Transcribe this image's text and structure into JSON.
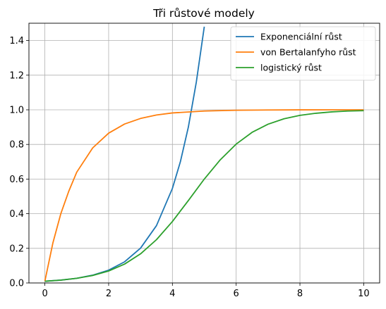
{
  "chart_data": {
    "type": "line",
    "title": "Tři růstové modely",
    "xlabel": "",
    "ylabel": "",
    "xlim": [
      -0.5,
      10.5
    ],
    "ylim": [
      0.0,
      1.5
    ],
    "grid": true,
    "legend_position": "top-right",
    "x_ticks": [
      {
        "value": 0,
        "label": "0"
      },
      {
        "value": 2,
        "label": "2"
      },
      {
        "value": 4,
        "label": "4"
      },
      {
        "value": 6,
        "label": "6"
      },
      {
        "value": 8,
        "label": "8"
      },
      {
        "value": 10,
        "label": "10"
      }
    ],
    "y_ticks": [
      {
        "value": 0.0,
        "label": "0.0"
      },
      {
        "value": 0.2,
        "label": "0.2"
      },
      {
        "value": 0.4,
        "label": "0.4"
      },
      {
        "value": 0.6,
        "label": "0.6"
      },
      {
        "value": 0.8,
        "label": "0.8"
      },
      {
        "value": 1.0,
        "label": "1.0"
      },
      {
        "value": 1.2,
        "label": "1.2"
      },
      {
        "value": 1.4,
        "label": "1.4"
      }
    ],
    "series": [
      {
        "name": "Exponenciální růst",
        "color": "#1f77b4",
        "x": [
          0,
          0.5,
          1,
          1.5,
          2,
          2.5,
          3,
          3.5,
          4,
          4.25,
          4.5,
          4.75,
          5.0
        ],
        "y": [
          0.01,
          0.0165,
          0.027,
          0.045,
          0.074,
          0.122,
          0.201,
          0.331,
          0.546,
          0.7,
          0.9,
          1.16,
          1.48
        ]
      },
      {
        "name": "von Bertalanfyho růst",
        "color": "#ff7f0e",
        "x": [
          0,
          0.25,
          0.5,
          0.75,
          1,
          1.5,
          2,
          2.5,
          3,
          3.5,
          4,
          5,
          6,
          7,
          8,
          9,
          10
        ],
        "y": [
          0.01,
          0.23,
          0.4,
          0.53,
          0.64,
          0.78,
          0.865,
          0.918,
          0.95,
          0.97,
          0.982,
          0.993,
          0.9975,
          0.999,
          0.9997,
          0.9999,
          1.0
        ]
      },
      {
        "name": "logistický růst",
        "color": "#2ca02c",
        "x": [
          0,
          0.5,
          1,
          1.5,
          2,
          2.5,
          3,
          3.5,
          4,
          4.5,
          5,
          5.5,
          6,
          6.5,
          7,
          7.5,
          8,
          8.5,
          9,
          9.5,
          10
        ],
        "y": [
          0.01,
          0.0163,
          0.027,
          0.043,
          0.069,
          0.109,
          0.168,
          0.25,
          0.355,
          0.476,
          0.6,
          0.711,
          0.802,
          0.87,
          0.917,
          0.948,
          0.968,
          0.98,
          0.988,
          0.993,
          0.995
        ]
      }
    ]
  }
}
